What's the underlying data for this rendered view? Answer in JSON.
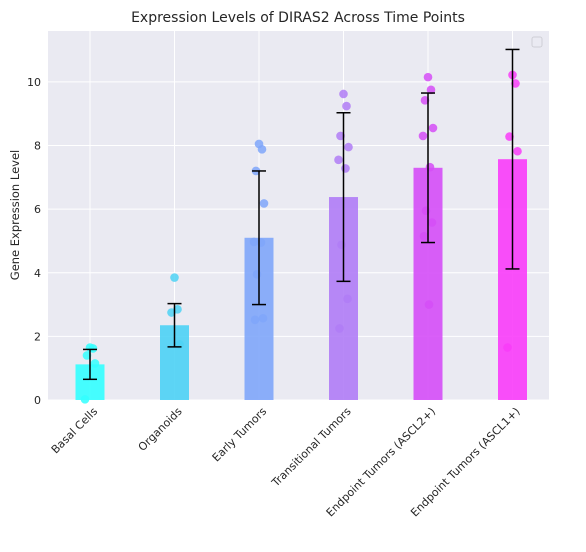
{
  "chart_data": {
    "type": "bar",
    "title": "Expression Levels of DIRAS2 Across Time Points",
    "xlabel": "",
    "ylabel": "Gene Expression Level",
    "ylim": [
      0,
      11.6
    ],
    "yticks": [
      0,
      2,
      4,
      6,
      8,
      10
    ],
    "grid": true,
    "legend": "top-right (empty)",
    "categories": [
      "Basal Cells",
      "Organoids",
      "Early Tumors",
      "Transitional Tumors",
      "Endpoint Tumors (ASCL2+)",
      "Endpoint Tumors (ASCL1+)"
    ],
    "colors": [
      "#33ffff",
      "#4dd2f5",
      "#7fa6fa",
      "#b07cf6",
      "#d54ef7",
      "#f93cf9"
    ],
    "values": [
      1.12,
      2.35,
      5.1,
      6.38,
      7.3,
      7.57
    ],
    "error": [
      0.47,
      0.68,
      2.1,
      2.65,
      2.35,
      3.45
    ],
    "points": [
      [
        1.65,
        1.62,
        1.4,
        1.15,
        0.02
      ],
      [
        3.85,
        2.85,
        2.75,
        1.75
      ],
      [
        8.05,
        7.88,
        7.2,
        6.18,
        4.97,
        4.95,
        3.95,
        2.57,
        2.52
      ],
      [
        9.62,
        9.24,
        8.3,
        7.95,
        7.55,
        7.28,
        4.88,
        3.18,
        2.25
      ],
      [
        10.15,
        9.75,
        9.42,
        8.55,
        8.3,
        7.32,
        5.95,
        5.58,
        5.15,
        3.0
      ],
      [
        10.22,
        9.95,
        8.28,
        7.82,
        1.65
      ]
    ]
  }
}
